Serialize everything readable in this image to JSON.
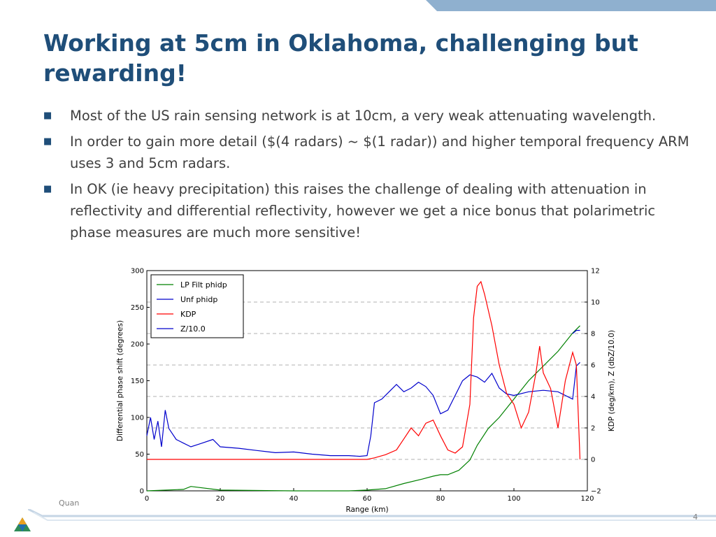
{
  "slide": {
    "title": "Working at 5cm in Oklahoma, challenging but rewarding!",
    "bullets": [
      "Most of the US rain sensing network is at 10cm, a very weak attenuating wavelength.",
      "In order to gain more detail ($(4 radars) ~ $(1 radar)) and higher temporal frequency ARM uses 3 and 5cm radars.",
      "In OK (ie heavy precipitation) this raises the challenge of dealing with attenuation in reflectivity and differential reflectivity, however we get a nice bonus that polarimetric phase measures are much more sensitive!"
    ],
    "footer_text": "Quan",
    "page_number": "4",
    "colors": {
      "title": "#1f4e79",
      "body": "#404040",
      "accent": "#8fb0cf"
    }
  },
  "chart_data": {
    "type": "line",
    "xlabel": "Range (km)",
    "ylabel": "Differential phase shift (degrees)",
    "ylabel_right": "KDP (deg/km), Z (dbZ/10.0)",
    "xlim": [
      0,
      120
    ],
    "ylim": [
      0,
      300
    ],
    "ylim_right": [
      -2,
      12
    ],
    "xticks": [
      0,
      20,
      40,
      60,
      80,
      100,
      120
    ],
    "yticks": [
      0,
      50,
      100,
      150,
      200,
      250,
      300
    ],
    "yticks_right": [
      -2,
      0,
      2,
      4,
      6,
      8,
      10,
      12
    ],
    "grid": "dashed horizontal (right axis)",
    "legend_position": "top-left",
    "series": [
      {
        "name": "LP Filt phidp",
        "color": "#008000",
        "axis": "left",
        "x": [
          0,
          10,
          12,
          20,
          40,
          55,
          60,
          65,
          70,
          75,
          78,
          80,
          82,
          85,
          88,
          90,
          93,
          96,
          100,
          104,
          108,
          112,
          116,
          118
        ],
        "y": [
          0,
          2,
          6,
          1,
          0,
          0,
          1,
          3,
          10,
          16,
          20,
          22,
          22,
          28,
          42,
          62,
          85,
          100,
          125,
          150,
          170,
          190,
          215,
          225
        ]
      },
      {
        "name": "Unf phidp",
        "color": "#0000cc",
        "axis": "left",
        "x": [
          0,
          1,
          2,
          3,
          4,
          5,
          6,
          8,
          10,
          12,
          15,
          18,
          20,
          25,
          30,
          35,
          40,
          45,
          50,
          55,
          58,
          60,
          61,
          62,
          64,
          66,
          68,
          70,
          72,
          74,
          76,
          78,
          80,
          82,
          84,
          86,
          88,
          90,
          92,
          94,
          96,
          98,
          100,
          104,
          108,
          112,
          116,
          117,
          118
        ],
        "y": [
          75,
          100,
          70,
          95,
          60,
          110,
          85,
          70,
          65,
          60,
          65,
          70,
          60,
          58,
          55,
          52,
          53,
          50,
          48,
          48,
          47,
          48,
          75,
          120,
          125,
          135,
          145,
          135,
          140,
          148,
          142,
          130,
          105,
          110,
          130,
          150,
          158,
          155,
          148,
          160,
          140,
          132,
          130,
          135,
          137,
          135,
          125,
          170,
          175
        ]
      },
      {
        "name": "KDP",
        "color": "#ff0000",
        "axis": "right",
        "x": [
          0,
          20,
          40,
          55,
          60,
          62,
          65,
          68,
          70,
          72,
          74,
          76,
          78,
          80,
          82,
          84,
          86,
          88,
          89,
          90,
          91,
          92,
          94,
          96,
          98,
          100,
          102,
          104,
          106,
          107,
          108,
          110,
          112,
          113,
          114,
          116,
          117,
          118
        ],
        "y": [
          0,
          0,
          0,
          0,
          0,
          0.1,
          0.3,
          0.6,
          1.3,
          2.0,
          1.5,
          2.3,
          2.5,
          1.5,
          0.6,
          0.4,
          0.8,
          3.5,
          9.0,
          11.0,
          11.3,
          10.5,
          8.5,
          6.0,
          4.2,
          3.5,
          2.0,
          3.0,
          5.5,
          7.2,
          5.5,
          4.5,
          2.0,
          3.5,
          5.0,
          6.8,
          6.0,
          0
        ]
      },
      {
        "name": "Z/10.0",
        "color": "#0000cc",
        "axis": "right",
        "x": [
          116,
          117,
          118
        ],
        "y": [
          8.0,
          8.2,
          8.2
        ]
      }
    ]
  }
}
